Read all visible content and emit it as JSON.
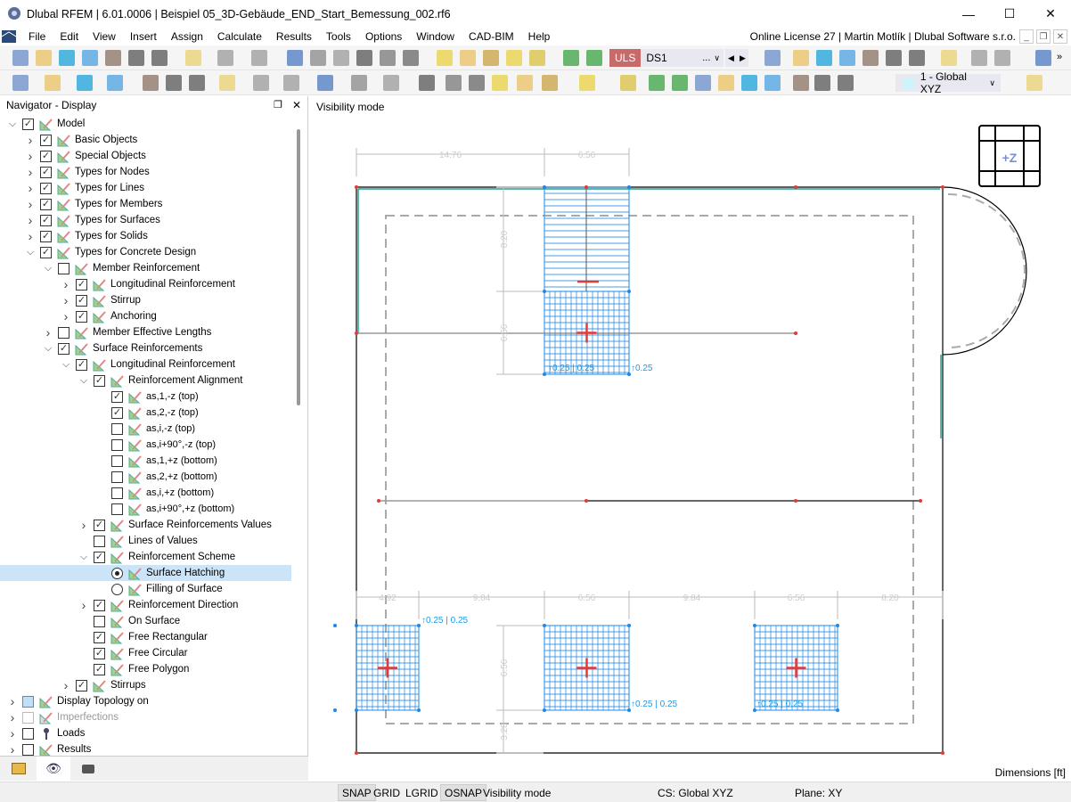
{
  "window": {
    "title": "Dlubal RFEM | 6.01.0006 | Beispiel 05_3D-Gebäude_END_Start_Bemessung_002.rf6",
    "minimize": "—",
    "maximize": "☐",
    "close": "✕"
  },
  "menu": {
    "items": [
      "File",
      "Edit",
      "View",
      "Insert",
      "Assign",
      "Calculate",
      "Results",
      "Tools",
      "Options",
      "Window",
      "CAD-BIM",
      "Help"
    ],
    "license": "Online License 27 | Martin Motlík | Dlubal Software s.r.o."
  },
  "toolbar": {
    "load_type": "ULS",
    "load_case": "DS1",
    "load_case_more": "...",
    "coord_system": "1 - Global XYZ",
    "overflow": "»"
  },
  "navigator": {
    "title": "Navigator - Display",
    "items": [
      {
        "label": "Model",
        "depth": 0,
        "expander": "open",
        "check": "checked"
      },
      {
        "label": "Basic Objects",
        "depth": 1,
        "expander": "closed",
        "check": "checked"
      },
      {
        "label": "Special Objects",
        "depth": 1,
        "expander": "closed",
        "check": "checked"
      },
      {
        "label": "Types for Nodes",
        "depth": 1,
        "expander": "closed",
        "check": "checked"
      },
      {
        "label": "Types for Lines",
        "depth": 1,
        "expander": "closed",
        "check": "checked"
      },
      {
        "label": "Types for Members",
        "depth": 1,
        "expander": "closed",
        "check": "checked"
      },
      {
        "label": "Types for Surfaces",
        "depth": 1,
        "expander": "closed",
        "check": "checked"
      },
      {
        "label": "Types for Solids",
        "depth": 1,
        "expander": "closed",
        "check": "checked"
      },
      {
        "label": "Types for Concrete Design",
        "depth": 1,
        "expander": "open",
        "check": "checked"
      },
      {
        "label": "Member Reinforcement",
        "depth": 2,
        "expander": "open",
        "check": "unchecked"
      },
      {
        "label": "Longitudinal Reinforcement",
        "depth": 3,
        "expander": "closed",
        "check": "checked"
      },
      {
        "label": "Stirrup",
        "depth": 3,
        "expander": "closed",
        "check": "checked"
      },
      {
        "label": "Anchoring",
        "depth": 3,
        "expander": "closed",
        "check": "checked"
      },
      {
        "label": "Member Effective Lengths",
        "depth": 2,
        "expander": "closed",
        "check": "unchecked"
      },
      {
        "label": "Surface Reinforcements",
        "depth": 2,
        "expander": "open",
        "check": "checked"
      },
      {
        "label": "Longitudinal Reinforcement",
        "depth": 3,
        "expander": "open",
        "check": "checked"
      },
      {
        "label": "Reinforcement Alignment",
        "depth": 4,
        "expander": "open",
        "check": "checked"
      },
      {
        "label": "as,1,-z (top)",
        "depth": 5,
        "expander": "none",
        "check": "checked",
        "small": true
      },
      {
        "label": "as,2,-z (top)",
        "depth": 5,
        "expander": "none",
        "check": "checked",
        "small": true
      },
      {
        "label": "as,i,-z (top)",
        "depth": 5,
        "expander": "none",
        "check": "unchecked",
        "small": true
      },
      {
        "label": "as,i+90°,-z (top)",
        "depth": 5,
        "expander": "none",
        "check": "unchecked",
        "small": true
      },
      {
        "label": "as,1,+z (bottom)",
        "depth": 5,
        "expander": "none",
        "check": "unchecked",
        "small": true
      },
      {
        "label": "as,2,+z (bottom)",
        "depth": 5,
        "expander": "none",
        "check": "unchecked",
        "small": true
      },
      {
        "label": "as,i,+z (bottom)",
        "depth": 5,
        "expander": "none",
        "check": "unchecked",
        "small": true
      },
      {
        "label": "as,i+90°,+z (bottom)",
        "depth": 5,
        "expander": "none",
        "check": "unchecked",
        "small": true
      },
      {
        "label": "Surface Reinforcements Values",
        "depth": 4,
        "expander": "closed",
        "check": "checked"
      },
      {
        "label": "Lines of Values",
        "depth": 4,
        "expander": "none",
        "check": "unchecked"
      },
      {
        "label": "Reinforcement Scheme",
        "depth": 4,
        "expander": "open",
        "check": "checked"
      },
      {
        "label": "Surface Hatching",
        "depth": 5,
        "expander": "none",
        "check": "radio-on",
        "selected": true
      },
      {
        "label": "Filling of Surface",
        "depth": 5,
        "expander": "none",
        "check": "radio-off"
      },
      {
        "label": "Reinforcement Direction",
        "depth": 4,
        "expander": "closed",
        "check": "checked"
      },
      {
        "label": "On Surface",
        "depth": 4,
        "expander": "none",
        "check": "unchecked"
      },
      {
        "label": "Free Rectangular",
        "depth": 4,
        "expander": "none",
        "check": "checked"
      },
      {
        "label": "Free Circular",
        "depth": 4,
        "expander": "none",
        "check": "checked"
      },
      {
        "label": "Free Polygon",
        "depth": 4,
        "expander": "none",
        "check": "checked"
      },
      {
        "label": "Stirrups",
        "depth": 3,
        "expander": "closed",
        "check": "checked"
      },
      {
        "label": "Display Topology on",
        "depth": 0,
        "expander": "closed",
        "check": "partial"
      },
      {
        "label": "Imperfections",
        "depth": 0,
        "expander": "closed",
        "check": "disabled",
        "disabled": true
      },
      {
        "label": "Loads",
        "depth": 0,
        "expander": "closed",
        "check": "unchecked"
      },
      {
        "label": "Results",
        "depth": 0,
        "expander": "closed",
        "check": "unchecked"
      }
    ]
  },
  "view": {
    "mode_label": "Visibility mode",
    "units_label": "Dimensions [ft]",
    "cube_label": "+Z",
    "dims": {
      "top": [
        "14.76",
        "6.56"
      ],
      "left_upper": [
        "8.20",
        "6.56"
      ],
      "bottom": [
        "4.92",
        "9.84",
        "6.56",
        "9.84",
        "6.56",
        "8.20"
      ],
      "left_lower": [
        "6.56",
        "3.28"
      ]
    },
    "rebar_labels": [
      "↑0.25 | 0.25",
      "↑0.25",
      "↑0.25 | 0.25",
      "↑0.25 | 0.25",
      "↑0.25 | 0.25"
    ],
    "colors": {
      "rebar": "#1e88e5",
      "node": "#e53935",
      "dimension": "#a0a0a0",
      "edge": "#000000"
    }
  },
  "statusbar": {
    "items": [
      "SNAP",
      "GRID",
      "LGRID",
      "OSNAP",
      "Visibility mode"
    ],
    "cs": "CS: Global XYZ",
    "plane": "Plane: XY"
  }
}
